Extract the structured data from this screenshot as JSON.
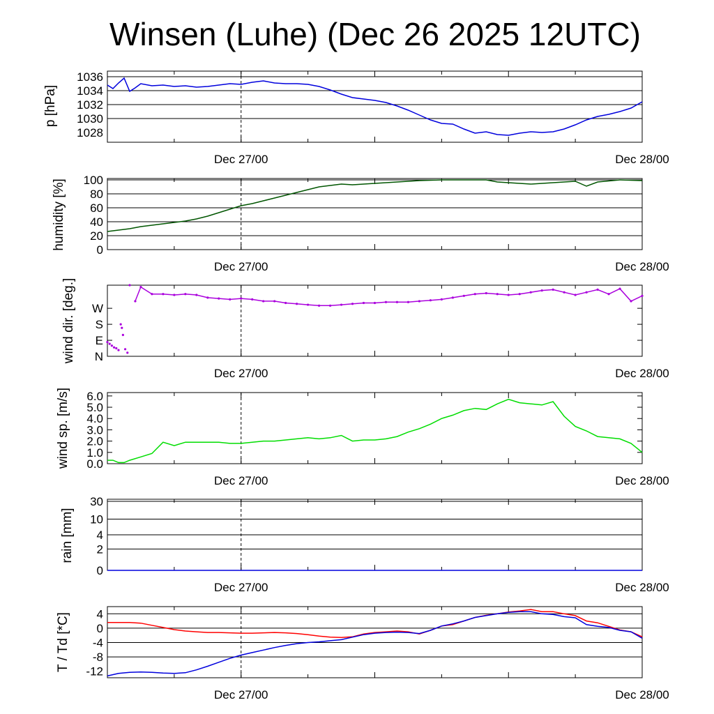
{
  "title": "Winsen (Luhe) (Dec 26 2025 12UTC)",
  "x_tick_labels": [
    "Dec 27/00",
    "Dec 28/00"
  ],
  "chart_data": [
    {
      "type": "line",
      "ylabel": "p [hPa]",
      "ylim": [
        1026.6,
        1036.8
      ],
      "yticks": [
        1028,
        1030,
        1032,
        1034,
        1036
      ],
      "tick_labels": [
        "1028",
        "1030",
        "1032",
        "1034",
        "1036"
      ],
      "grid": true,
      "color": "#0000dd",
      "x_hours": [
        0,
        0.5,
        1,
        1.5,
        2,
        2.5,
        3,
        4,
        5,
        6,
        7,
        8,
        9,
        10,
        11,
        12,
        13,
        14,
        15,
        16,
        17,
        18,
        19,
        20,
        21,
        22,
        23,
        24,
        25,
        26,
        27,
        28,
        29,
        30,
        31,
        32,
        33,
        34,
        35,
        36,
        37,
        38,
        39,
        40,
        41,
        42,
        43,
        44,
        45,
        46,
        47,
        48
      ],
      "values": [
        1034.8,
        1034.3,
        1035.1,
        1035.8,
        1033.9,
        1034.4,
        1035.0,
        1034.7,
        1034.8,
        1034.6,
        1034.7,
        1034.5,
        1034.6,
        1034.8,
        1035.0,
        1034.9,
        1035.2,
        1035.4,
        1035.1,
        1035.0,
        1035.0,
        1034.9,
        1034.6,
        1034.1,
        1033.5,
        1033.0,
        1032.8,
        1032.6,
        1032.3,
        1031.8,
        1031.2,
        1030.5,
        1029.8,
        1029.3,
        1029.2,
        1028.5,
        1027.9,
        1028.1,
        1027.7,
        1027.6,
        1027.9,
        1028.1,
        1028.0,
        1028.1,
        1028.5,
        1029.1,
        1029.8,
        1030.3,
        1030.6,
        1031.0,
        1031.5,
        1032.4
      ]
    },
    {
      "type": "line",
      "ylabel": "humidity [%]",
      "ylim": [
        0,
        102
      ],
      "yticks": [
        0,
        20,
        40,
        60,
        80,
        100
      ],
      "tick_labels": [
        "0",
        "20",
        "40",
        "60",
        "80",
        "100"
      ],
      "grid": true,
      "color": "#005500",
      "x_hours": [
        0,
        1,
        2,
        3,
        4,
        5,
        6,
        7,
        8,
        9,
        10,
        11,
        12,
        13,
        14,
        15,
        16,
        17,
        18,
        19,
        20,
        21,
        22,
        23,
        24,
        26,
        28,
        30,
        32,
        34,
        35,
        36,
        38,
        40,
        41,
        42,
        43,
        44,
        46,
        48
      ],
      "values": [
        26,
        28,
        30,
        33,
        35,
        37,
        39,
        41,
        44,
        48,
        53,
        58,
        63,
        66,
        70,
        74,
        78,
        82,
        86,
        90,
        92,
        94,
        93,
        94,
        95,
        97,
        99,
        100,
        100,
        100,
        97,
        96,
        94,
        96,
        97,
        98,
        91,
        97,
        100,
        99
      ]
    },
    {
      "type": "scatter",
      "ylabel": "wind dir. [deg.]",
      "ylim": [
        0,
        400
      ],
      "yticks": [
        0,
        90,
        180,
        270
      ],
      "tick_labels": [
        "N",
        "E",
        "S",
        "W"
      ],
      "grid": false,
      "color": "#aa00dd",
      "x_hours": [
        0,
        0.2,
        0.4,
        0.6,
        0.8,
        1.0,
        1.2,
        1.3,
        1.4,
        1.6,
        1.8,
        2.0,
        2.5,
        3,
        4,
        5,
        6,
        7,
        8,
        9,
        10,
        11,
        12,
        13,
        14,
        15,
        16,
        17,
        18,
        19,
        20,
        21,
        22,
        23,
        24,
        25,
        26,
        27,
        28,
        29,
        30,
        31,
        32,
        33,
        34,
        35,
        36,
        37,
        38,
        39,
        40,
        41,
        42,
        43,
        44,
        45,
        46,
        47,
        48
      ],
      "values": [
        80,
        70,
        60,
        50,
        45,
        35,
        180,
        160,
        120,
        40,
        20,
        400,
        310,
        390,
        350,
        350,
        345,
        350,
        345,
        330,
        325,
        320,
        325,
        320,
        310,
        310,
        300,
        295,
        290,
        285,
        285,
        290,
        295,
        300,
        300,
        305,
        305,
        305,
        310,
        315,
        320,
        330,
        340,
        350,
        355,
        350,
        345,
        350,
        360,
        370,
        375,
        360,
        345,
        360,
        375,
        350,
        380,
        310,
        340
      ]
    },
    {
      "type": "line",
      "ylabel": "wind sp. [m/s]",
      "ylim": [
        0,
        6.3
      ],
      "yticks": [
        0,
        1,
        2,
        3,
        4,
        5,
        6
      ],
      "tick_labels": [
        "0.0",
        "1.0",
        "2.0",
        "3.0",
        "4.0",
        "5.0",
        "6.0"
      ],
      "grid": false,
      "color": "#00dd00",
      "x_hours": [
        0,
        0.5,
        1,
        1.5,
        2,
        3,
        4,
        5,
        6,
        7,
        8,
        9,
        10,
        11,
        12,
        13,
        14,
        15,
        16,
        17,
        18,
        19,
        20,
        21,
        22,
        23,
        24,
        25,
        26,
        27,
        28,
        29,
        30,
        31,
        32,
        33,
        34,
        35,
        36,
        37,
        38,
        39,
        40,
        41,
        42,
        43,
        44,
        45,
        46,
        47,
        48
      ],
      "values": [
        0.3,
        0.3,
        0.1,
        0.1,
        0.3,
        0.6,
        0.9,
        1.9,
        1.6,
        1.9,
        1.9,
        1.9,
        1.9,
        1.8,
        1.8,
        1.9,
        2.0,
        2.0,
        2.1,
        2.2,
        2.3,
        2.2,
        2.3,
        2.5,
        2.0,
        2.1,
        2.1,
        2.2,
        2.4,
        2.8,
        3.1,
        3.5,
        4.0,
        4.3,
        4.7,
        4.9,
        4.8,
        5.3,
        5.7,
        5.4,
        5.3,
        5.2,
        5.5,
        4.2,
        3.3,
        2.9,
        2.4,
        2.3,
        2.2,
        1.8,
        1.0
      ]
    },
    {
      "type": "line",
      "ylabel": "rain [mm]",
      "ylim": [
        0,
        32
      ],
      "yticks": [
        0,
        2,
        4,
        10,
        30
      ],
      "tick_labels": [
        "0",
        "2",
        "4",
        "10",
        "30"
      ],
      "grid": true,
      "color": "#0000dd",
      "x_hours": [
        0,
        48
      ],
      "values": [
        0,
        0
      ]
    },
    {
      "type": "line",
      "ylabel": "T / Td [*C]",
      "ylim": [
        -13.8,
        6
      ],
      "yticks": [
        -12,
        -8,
        -4,
        0,
        4
      ],
      "tick_labels": [
        "-12",
        "-8",
        "-4",
        "0",
        "4"
      ],
      "grid": true,
      "series": [
        {
          "color": "#ff0000",
          "x_hours": [
            0,
            1,
            2,
            3,
            4,
            5,
            6,
            7,
            8,
            9,
            10,
            11,
            12,
            13,
            14,
            15,
            16,
            17,
            18,
            19,
            20,
            21,
            22,
            23,
            24,
            25,
            26,
            27,
            28,
            29,
            30,
            31,
            32,
            33,
            34,
            35,
            36,
            37,
            38,
            39,
            40,
            41,
            42,
            43,
            44,
            45,
            46,
            47,
            48
          ],
          "values": [
            1.6,
            1.6,
            1.6,
            1.4,
            0.8,
            0.2,
            -0.4,
            -0.8,
            -1.0,
            -1.2,
            -1.2,
            -1.3,
            -1.4,
            -1.4,
            -1.3,
            -1.2,
            -1.3,
            -1.5,
            -1.8,
            -2.2,
            -2.5,
            -2.6,
            -2.4,
            -1.6,
            -1.2,
            -1.0,
            -0.8,
            -1.0,
            -1.6,
            -0.6,
            0.6,
            1.0,
            2.0,
            3.0,
            3.6,
            4.0,
            4.5,
            4.8,
            5.2,
            4.6,
            4.6,
            4.0,
            3.5,
            2.0,
            1.5,
            0.5,
            -0.5,
            -1.0,
            -2.4
          ]
        },
        {
          "color": "#0000dd",
          "x_hours": [
            0,
            1,
            2,
            3,
            4,
            5,
            6,
            7,
            8,
            9,
            10,
            11,
            12,
            13,
            14,
            15,
            16,
            17,
            18,
            19,
            20,
            21,
            22,
            23,
            24,
            25,
            26,
            27,
            28,
            29,
            30,
            31,
            32,
            33,
            34,
            35,
            36,
            37,
            38,
            39,
            40,
            41,
            42,
            43,
            44,
            45,
            46,
            47,
            48
          ],
          "values": [
            -13.3,
            -12.6,
            -12.3,
            -12.2,
            -12.3,
            -12.5,
            -12.6,
            -12.4,
            -11.6,
            -10.6,
            -9.5,
            -8.4,
            -7.5,
            -6.8,
            -6.1,
            -5.4,
            -4.8,
            -4.3,
            -4.0,
            -3.8,
            -3.5,
            -3.2,
            -2.5,
            -1.8,
            -1.4,
            -1.2,
            -1.1,
            -1.2,
            -1.5,
            -0.6,
            0.6,
            1.2,
            2.0,
            3.0,
            3.5,
            4.0,
            4.4,
            4.6,
            4.6,
            4.0,
            3.8,
            3.2,
            2.9,
            1.0,
            0.5,
            0.2,
            -0.6,
            -1.0,
            -2.8
          ]
        }
      ]
    }
  ]
}
